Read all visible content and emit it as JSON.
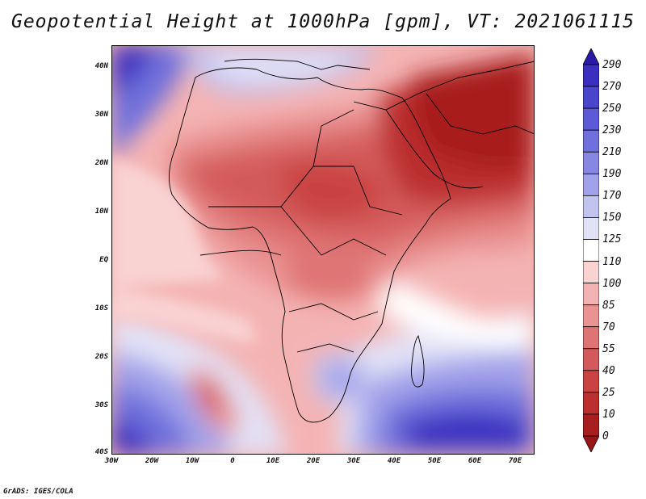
{
  "title": "Geopotential Height at 1000hPa [gpm], VT: 2021061115",
  "footer": "GrADS: IGES/COLA",
  "map": {
    "lat_labels": [
      "40N",
      "30N",
      "20N",
      "10N",
      "EQ",
      "10S",
      "20S",
      "30S",
      "40S"
    ],
    "lon_labels": [
      "30W",
      "20W",
      "10W",
      "0",
      "10E",
      "20E",
      "30E",
      "40E",
      "50E",
      "60E",
      "70E"
    ],
    "background_color": "#f4b3b3"
  },
  "colorbar": {
    "levels": [
      "290",
      "270",
      "250",
      "230",
      "210",
      "190",
      "170",
      "150",
      "125",
      "110",
      "100",
      "85",
      "70",
      "55",
      "40",
      "25",
      "10",
      "0"
    ],
    "colors": [
      "#2b1aa8",
      "#3b2fc0",
      "#4a46cc",
      "#5c5ad6",
      "#6f70dc",
      "#8787e3",
      "#a2a2ea",
      "#c3c3f0",
      "#e2e2f7",
      "#ffffff",
      "#f9d2d2",
      "#f4b3b3",
      "#ea9393",
      "#df7474",
      "#d35a5a",
      "#c94343",
      "#bc2f2f",
      "#a81f1f",
      "#9a1515"
    ]
  }
}
